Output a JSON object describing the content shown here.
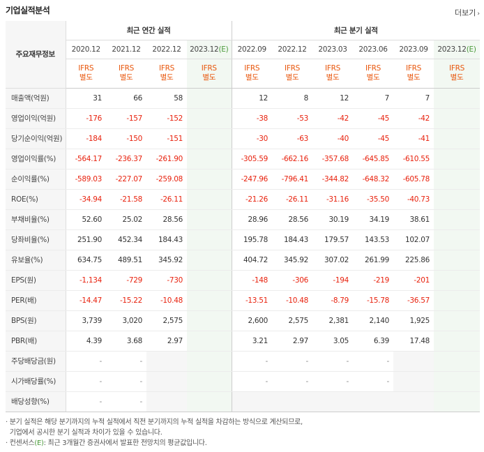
{
  "title": "기업실적분석",
  "more": "더보기",
  "header": {
    "corner": "주요재무정보",
    "annual_group": "최근 연간 실적",
    "quarter_group": "최근 분기 실적",
    "annual_dates": [
      "2020.12",
      "2021.12",
      "2022.12",
      "2023.12"
    ],
    "annual_est_mark": "(E)",
    "quarter_dates": [
      "2022.09",
      "2022.12",
      "2023.03",
      "2023.06",
      "2023.09",
      "2023.12"
    ],
    "quarter_est_mark": "(E)",
    "ifrs_line1": "IFRS",
    "ifrs_line2": "별도"
  },
  "rows": [
    {
      "label": "매출액(억원)",
      "annual": [
        "31",
        "66",
        "58",
        ""
      ],
      "quarter": [
        "12",
        "8",
        "12",
        "7",
        "7",
        ""
      ]
    },
    {
      "label": "영업이익(억원)",
      "annual": [
        "-176",
        "-157",
        "-152",
        ""
      ],
      "quarter": [
        "-38",
        "-53",
        "-42",
        "-45",
        "-42",
        ""
      ]
    },
    {
      "label": "당기순이익(억원)",
      "annual": [
        "-184",
        "-150",
        "-151",
        ""
      ],
      "quarter": [
        "-30",
        "-63",
        "-40",
        "-45",
        "-41",
        ""
      ]
    },
    {
      "label": "영업이익률(%)",
      "annual": [
        "-564.17",
        "-236.37",
        "-261.90",
        ""
      ],
      "quarter": [
        "-305.59",
        "-662.16",
        "-357.68",
        "-645.85",
        "-610.55",
        ""
      ]
    },
    {
      "label": "순이익률(%)",
      "annual": [
        "-589.03",
        "-227.07",
        "-259.08",
        ""
      ],
      "quarter": [
        "-247.96",
        "-796.41",
        "-344.82",
        "-648.32",
        "-605.78",
        ""
      ]
    },
    {
      "label": "ROE(%)",
      "annual": [
        "-34.94",
        "-21.58",
        "-26.11",
        ""
      ],
      "quarter": [
        "-21.26",
        "-26.11",
        "-31.16",
        "-35.50",
        "-40.73",
        ""
      ]
    },
    {
      "label": "부채비율(%)",
      "annual": [
        "52.60",
        "25.02",
        "28.56",
        ""
      ],
      "quarter": [
        "28.96",
        "28.56",
        "30.19",
        "34.19",
        "38.61",
        ""
      ]
    },
    {
      "label": "당좌비율(%)",
      "annual": [
        "251.90",
        "452.34",
        "184.43",
        ""
      ],
      "quarter": [
        "195.78",
        "184.43",
        "179.57",
        "143.53",
        "102.07",
        ""
      ]
    },
    {
      "label": "유보율(%)",
      "annual": [
        "634.75",
        "489.51",
        "345.92",
        ""
      ],
      "quarter": [
        "404.72",
        "345.92",
        "307.02",
        "261.99",
        "225.86",
        ""
      ]
    },
    {
      "label": "EPS(원)",
      "annual": [
        "-1,134",
        "-729",
        "-730",
        ""
      ],
      "quarter": [
        "-148",
        "-306",
        "-194",
        "-219",
        "-201",
        ""
      ]
    },
    {
      "label": "PER(배)",
      "annual": [
        "-14.47",
        "-15.22",
        "-10.48",
        ""
      ],
      "quarter": [
        "-13.51",
        "-10.48",
        "-8.79",
        "-15.78",
        "-36.57",
        ""
      ]
    },
    {
      "label": "BPS(원)",
      "annual": [
        "3,739",
        "3,020",
        "2,575",
        ""
      ],
      "quarter": [
        "2,600",
        "2,575",
        "2,381",
        "2,140",
        "1,925",
        ""
      ]
    },
    {
      "label": "PBR(배)",
      "annual": [
        "4.39",
        "3.68",
        "2.97",
        ""
      ],
      "quarter": [
        "3.21",
        "2.97",
        "3.05",
        "6.39",
        "17.48",
        ""
      ]
    },
    {
      "label": "주당배당금(원)",
      "annual": [
        "-",
        "-",
        "",
        ""
      ],
      "quarter": [
        "-",
        "-",
        "-",
        "-",
        "",
        ""
      ]
    },
    {
      "label": "시가배당률(%)",
      "annual": [
        "-",
        "-",
        "",
        ""
      ],
      "quarter": [
        "-",
        "-",
        "-",
        "-",
        "",
        ""
      ]
    },
    {
      "label": "배당성향(%)",
      "annual": [
        "-",
        "-",
        "",
        ""
      ],
      "quarter": [
        "",
        "",
        "",
        "",
        "",
        ""
      ]
    }
  ],
  "notes": {
    "line1": "· 분기 실적은 해당 분기까지의 누적 실적에서 직전 분기까지의 누적 실적을 차감하는 방식으로 계산되므로,",
    "line2": "  기업에서 공시한 분기 실적과 차이가 있을 수 있습니다.",
    "line3_prefix": "· 컨센서스",
    "line3_mark": "(E)",
    "line3_suffix": ": 최근 3개월간 증권사에서 발표한 전망치의 평균값입니다."
  }
}
